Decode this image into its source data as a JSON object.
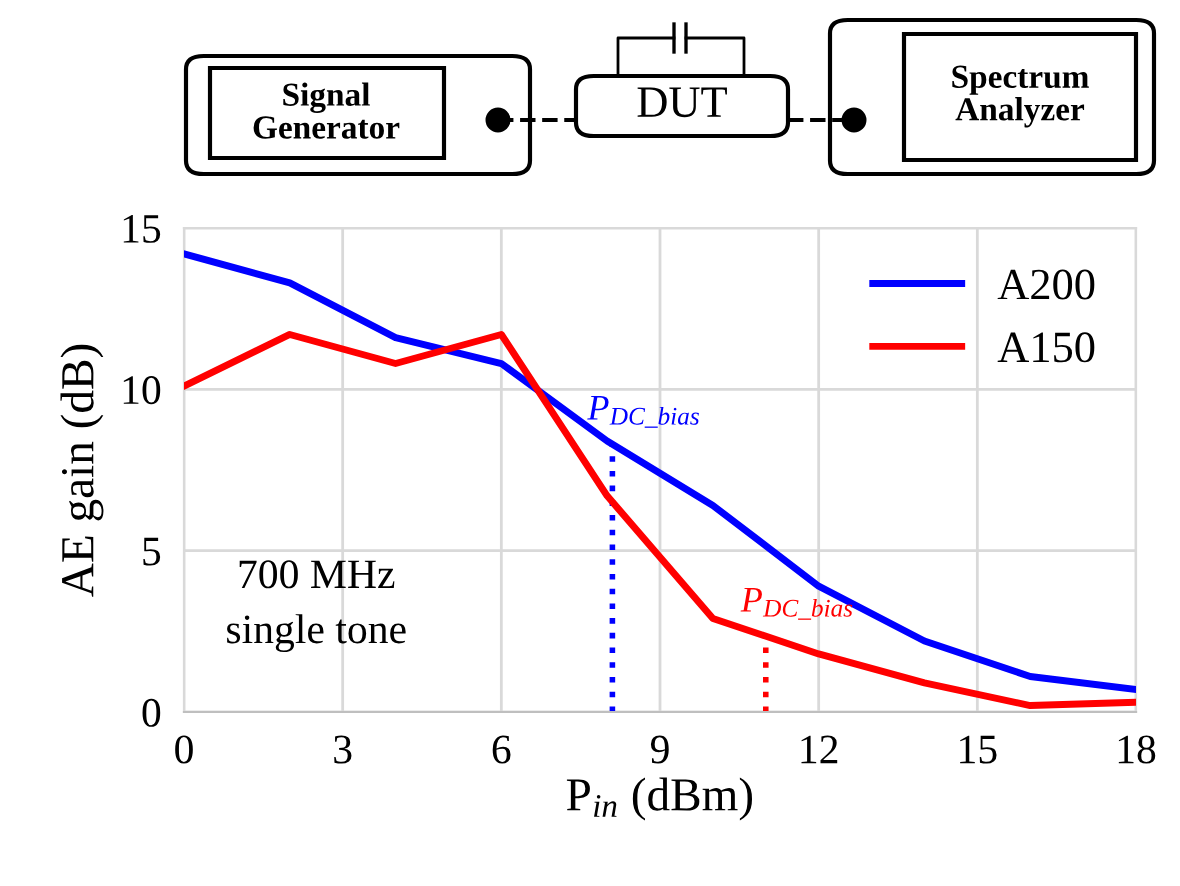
{
  "chart_data": {
    "type": "line",
    "xlabel": "P$_{in}$ (dBm)",
    "ylabel": "AE gain (dB)",
    "x": [
      0,
      2,
      4,
      6,
      8,
      10,
      12,
      14,
      16,
      18
    ],
    "series": [
      {
        "name": "A200",
        "color": "#0000ff",
        "values": [
          14.2,
          13.3,
          11.6,
          10.8,
          8.4,
          6.4,
          3.9,
          2.2,
          1.1,
          0.7
        ]
      },
      {
        "name": "A150",
        "color": "#ff0000",
        "values": [
          10.1,
          11.7,
          10.8,
          11.7,
          6.7,
          2.9,
          1.8,
          0.9,
          0.2,
          0.3
        ]
      }
    ],
    "ref_lines": [
      {
        "axis": "x",
        "value": 8.1,
        "label": "P$_{DC_bias}$",
        "color": "#0000ff",
        "line_style": "dotted"
      },
      {
        "axis": "x",
        "value": 11,
        "label": "P$_{DC_bias}$",
        "color": "#ff0000",
        "line_style": "dotted"
      }
    ],
    "annotations": [
      "Signal\nGenerator",
      "DUT",
      "Spectrum\nAnalyzer",
      "700 MHz\nsingle tone"
    ],
    "xlim": [
      0,
      18
    ],
    "ylim": [
      0,
      15
    ],
    "xticks": [
      0,
      3,
      6,
      9,
      12,
      15,
      18
    ],
    "yticks": [
      0,
      5,
      10,
      15
    ],
    "grid": true,
    "legend": "top right",
    "marker": "none",
    "line_style": "solid"
  }
}
